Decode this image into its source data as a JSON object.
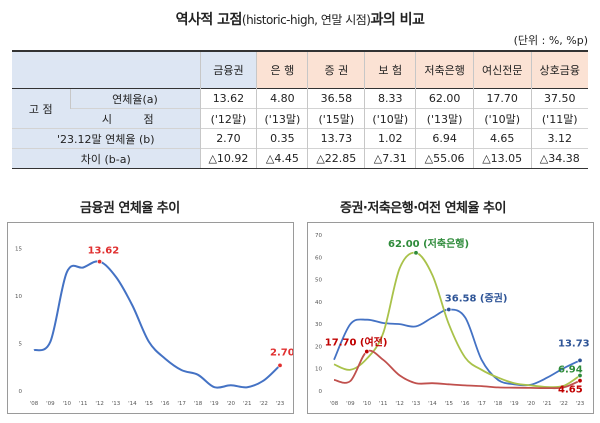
{
  "title": {
    "main": "역사적 고점",
    "sub": "(historic-high, 연말 시점)",
    "tail": "과의 비교"
  },
  "unit": "(단위 : %, %p)",
  "table": {
    "columns": [
      "금융권",
      "은 행",
      "증 권",
      "보 험",
      "저축은행",
      "여신전문",
      "상호금융"
    ],
    "row_group": "고 점",
    "row_rate_label": "연체율(a)",
    "row_rate": [
      "13.62",
      "4.80",
      "36.58",
      "8.33",
      "62.00",
      "17.70",
      "37.50"
    ],
    "row_time_label": "시 점",
    "row_time": [
      "('12말)",
      "('13말)",
      "('15말)",
      "('10말)",
      "('13말)",
      "('10말)",
      "('11말)"
    ],
    "row_b_label": "'23.12말 연체율 (b)",
    "row_b": [
      "2.70",
      "0.35",
      "13.73",
      "1.02",
      "6.94",
      "4.65",
      "3.12"
    ],
    "row_diff_label": "차이 (b-a)",
    "row_diff": [
      "△10.92",
      "△4.45",
      "△22.85",
      "△7.31",
      "△55.06",
      "△13.05",
      "△34.38"
    ]
  },
  "chart_titles": {
    "left": "금융권 연체율 추이",
    "right": "증권·저축은행·여전 연체율 추이"
  },
  "chart_data": [
    {
      "type": "line",
      "title": "금융권 연체율 추이",
      "x": [
        "'08",
        "'09",
        "'10",
        "'11",
        "'12",
        "'13",
        "'14",
        "'15",
        "'16",
        "'17",
        "'18",
        "'19",
        "'20",
        "'21",
        "'22",
        "'23"
      ],
      "ylim": [
        0,
        16
      ],
      "yticks": [
        0,
        5,
        10,
        15
      ],
      "grid": false,
      "series": [
        {
          "color": "#4472c4",
          "values": [
            4.3,
            5.2,
            12.5,
            13.0,
            13.62,
            12.0,
            9.0,
            5.2,
            3.4,
            2.2,
            1.7,
            0.4,
            0.6,
            0.4,
            1.1,
            2.7
          ]
        }
      ],
      "annotations": [
        {
          "text": "13.62",
          "x": "'12",
          "y": 13.62,
          "color": "#e03030"
        },
        {
          "text": "2.70",
          "x": "'23",
          "y": 2.7,
          "color": "#e03030"
        }
      ]
    },
    {
      "type": "line",
      "title": "증권·저축은행·여전 연체율 추이",
      "x": [
        "'08",
        "'09",
        "'10",
        "'11",
        "'12",
        "'13",
        "'14",
        "'15",
        "'16",
        "'17",
        "'18",
        "'19",
        "'20",
        "'21",
        "'22",
        "'23"
      ],
      "ylim": [
        0,
        70
      ],
      "yticks": [
        0,
        10,
        20,
        30,
        40,
        50,
        60,
        70
      ],
      "grid": false,
      "series": [
        {
          "color": "#4472c4",
          "values": [
            14.0,
            30.0,
            32.0,
            30.5,
            30.0,
            29.0,
            33.0,
            36.58,
            33.0,
            14.0,
            5.0,
            3.0,
            2.8,
            6.0,
            10.2,
            13.73
          ]
        },
        {
          "color": "#a9c24a",
          "values": [
            12.0,
            9.5,
            14.5,
            26.0,
            55.0,
            62.0,
            52.0,
            30.0,
            15.0,
            9.5,
            6.0,
            3.5,
            2.5,
            1.8,
            2.3,
            6.94
          ]
        },
        {
          "color": "#c0504d",
          "values": [
            5.0,
            4.5,
            17.7,
            14.0,
            7.0,
            3.5,
            3.5,
            3.0,
            2.5,
            2.2,
            1.6,
            1.5,
            1.4,
            1.3,
            1.6,
            4.65
          ]
        }
      ],
      "annotations": [
        {
          "text": "62.00 (저축은행)",
          "x": "'13",
          "y": 62.0,
          "color": "#2e8b3a"
        },
        {
          "text": "36.58 (증권)",
          "x": "'15",
          "y": 36.58,
          "color": "#2f5597"
        },
        {
          "text": "17.70 (여전)",
          "x": "'10",
          "y": 17.7,
          "color": "#c00000"
        },
        {
          "text": "13.73",
          "x": "'23",
          "y": 13.73,
          "color": "#2f5597"
        },
        {
          "text": "6.94",
          "x": "'23",
          "y": 6.94,
          "color": "#2e8b3a"
        },
        {
          "text": "4.65",
          "x": "'23",
          "y": 4.65,
          "color": "#c00000"
        }
      ]
    }
  ]
}
